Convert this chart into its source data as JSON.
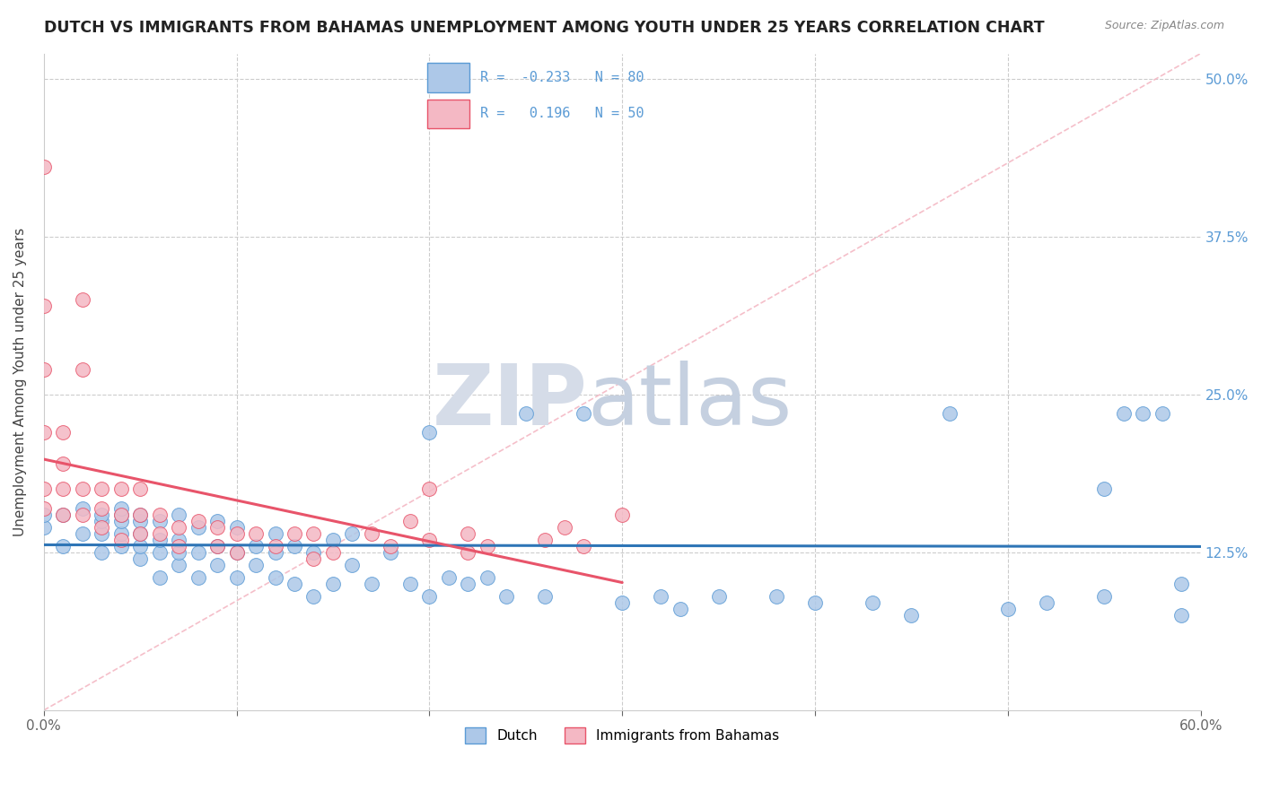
{
  "title": "DUTCH VS IMMIGRANTS FROM BAHAMAS UNEMPLOYMENT AMONG YOUTH UNDER 25 YEARS CORRELATION CHART",
  "source": "Source: ZipAtlas.com",
  "ylabel": "Unemployment Among Youth under 25 years",
  "xlim": [
    0.0,
    0.6
  ],
  "ylim": [
    0.0,
    0.52
  ],
  "xtick_vals": [
    0.0,
    0.1,
    0.2,
    0.3,
    0.4,
    0.5,
    0.6
  ],
  "xticklabels": [
    "0.0%",
    "",
    "",
    "",
    "",
    "",
    "60.0%"
  ],
  "ytick_vals": [
    0.0,
    0.125,
    0.25,
    0.375,
    0.5
  ],
  "yticklabels_right": [
    "",
    "12.5%",
    "25.0%",
    "37.5%",
    "50.0%"
  ],
  "dutch_R": -0.233,
  "dutch_N": 80,
  "bahamas_R": 0.196,
  "bahamas_N": 50,
  "dutch_fill_color": "#adc8e8",
  "dutch_edge_color": "#5b9bd5",
  "bahamas_fill_color": "#f4b8c4",
  "bahamas_edge_color": "#e8546a",
  "dutch_trendline_color": "#2e75b6",
  "bahamas_trendline_color": "#e8546a",
  "diag_line_color": "#f4b8c4",
  "watermark_zip_color": "#d0d8e8",
  "watermark_atlas_color": "#c0cce0",
  "right_tick_color": "#5b9bd5",
  "legend_text_color": "#5b9bd5",
  "dutch_scatter_x": [
    0.0,
    0.0,
    0.01,
    0.01,
    0.02,
    0.02,
    0.03,
    0.03,
    0.03,
    0.03,
    0.04,
    0.04,
    0.04,
    0.04,
    0.04,
    0.05,
    0.05,
    0.05,
    0.05,
    0.05,
    0.06,
    0.06,
    0.06,
    0.06,
    0.07,
    0.07,
    0.07,
    0.07,
    0.08,
    0.08,
    0.08,
    0.09,
    0.09,
    0.09,
    0.1,
    0.1,
    0.1,
    0.11,
    0.11,
    0.12,
    0.12,
    0.12,
    0.13,
    0.13,
    0.14,
    0.14,
    0.15,
    0.15,
    0.16,
    0.16,
    0.17,
    0.18,
    0.19,
    0.2,
    0.2,
    0.21,
    0.22,
    0.23,
    0.24,
    0.25,
    0.26,
    0.28,
    0.3,
    0.32,
    0.33,
    0.35,
    0.38,
    0.4,
    0.43,
    0.45,
    0.47,
    0.5,
    0.52,
    0.55,
    0.55,
    0.56,
    0.57,
    0.58,
    0.59,
    0.59
  ],
  "dutch_scatter_y": [
    0.145,
    0.155,
    0.13,
    0.155,
    0.14,
    0.16,
    0.125,
    0.14,
    0.15,
    0.155,
    0.13,
    0.14,
    0.15,
    0.155,
    0.16,
    0.12,
    0.13,
    0.14,
    0.15,
    0.155,
    0.105,
    0.125,
    0.135,
    0.15,
    0.115,
    0.125,
    0.135,
    0.155,
    0.105,
    0.125,
    0.145,
    0.115,
    0.13,
    0.15,
    0.105,
    0.125,
    0.145,
    0.115,
    0.13,
    0.105,
    0.125,
    0.14,
    0.1,
    0.13,
    0.09,
    0.125,
    0.1,
    0.135,
    0.115,
    0.14,
    0.1,
    0.125,
    0.1,
    0.09,
    0.22,
    0.105,
    0.1,
    0.105,
    0.09,
    0.235,
    0.09,
    0.235,
    0.085,
    0.09,
    0.08,
    0.09,
    0.09,
    0.085,
    0.085,
    0.075,
    0.235,
    0.08,
    0.085,
    0.175,
    0.09,
    0.235,
    0.235,
    0.235,
    0.1,
    0.075
  ],
  "bahamas_scatter_x": [
    0.0,
    0.0,
    0.0,
    0.0,
    0.0,
    0.0,
    0.01,
    0.01,
    0.01,
    0.01,
    0.02,
    0.02,
    0.02,
    0.02,
    0.03,
    0.03,
    0.03,
    0.04,
    0.04,
    0.04,
    0.05,
    0.05,
    0.05,
    0.06,
    0.06,
    0.07,
    0.07,
    0.08,
    0.09,
    0.09,
    0.1,
    0.1,
    0.11,
    0.12,
    0.13,
    0.14,
    0.14,
    0.15,
    0.17,
    0.18,
    0.19,
    0.2,
    0.2,
    0.22,
    0.22,
    0.23,
    0.26,
    0.27,
    0.28,
    0.3
  ],
  "bahamas_scatter_y": [
    0.43,
    0.32,
    0.27,
    0.22,
    0.175,
    0.16,
    0.22,
    0.195,
    0.175,
    0.155,
    0.325,
    0.27,
    0.175,
    0.155,
    0.175,
    0.16,
    0.145,
    0.175,
    0.155,
    0.135,
    0.175,
    0.155,
    0.14,
    0.155,
    0.14,
    0.145,
    0.13,
    0.15,
    0.145,
    0.13,
    0.14,
    0.125,
    0.14,
    0.13,
    0.14,
    0.12,
    0.14,
    0.125,
    0.14,
    0.13,
    0.15,
    0.175,
    0.135,
    0.14,
    0.125,
    0.13,
    0.135,
    0.145,
    0.13,
    0.155
  ]
}
